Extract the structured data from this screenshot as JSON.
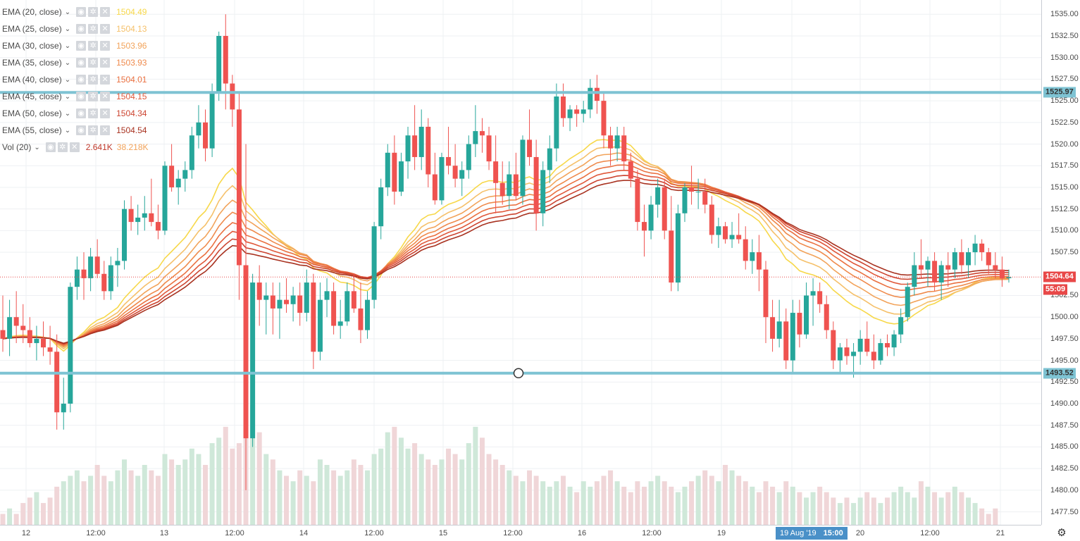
{
  "legend": {
    "indicators": [
      {
        "name": "EMA (20, close)",
        "value": "1504.49",
        "color": "#f7d84a"
      },
      {
        "name": "EMA (25, close)",
        "value": "1504.13",
        "color": "#f5c06a"
      },
      {
        "name": "EMA (30, close)",
        "value": "1503.96",
        "color": "#f2a35a"
      },
      {
        "name": "EMA (35, close)",
        "value": "1503.93",
        "color": "#ef8a4c"
      },
      {
        "name": "EMA (40, close)",
        "value": "1504.01",
        "color": "#ea7040"
      },
      {
        "name": "EMA (45, close)",
        "value": "1504.15",
        "color": "#e0583a"
      },
      {
        "name": "EMA (50, close)",
        "value": "1504.34",
        "color": "#cc4430"
      },
      {
        "name": "EMA (55, close)",
        "value": "1504.54",
        "color": "#a83220"
      }
    ],
    "volume": {
      "name": "Vol (20)",
      "value": "2.641K",
      "value2": "38.218K",
      "color": "#c0392b",
      "color2": "#f2a35a"
    },
    "buttons": {
      "visibility": "◉",
      "settings": "✲",
      "remove": "✕"
    }
  },
  "price_axis": {
    "labels": [
      "1535.00",
      "1532.50",
      "1530.00",
      "1527.50",
      "1525.00",
      "1522.50",
      "1520.00",
      "1517.50",
      "1515.00",
      "1512.50",
      "1510.00",
      "1507.50",
      "1502.50",
      "1500.00",
      "1497.50",
      "1495.00",
      "1492.50",
      "1490.00",
      "1487.50",
      "1485.00",
      "1482.50",
      "1480.00",
      "1477.50"
    ]
  },
  "time_axis": {
    "labels": [
      "12",
      "12:00",
      "13",
      "12:00",
      "14",
      "12:00",
      "15",
      "12:00",
      "16",
      "12:00",
      "19",
      "12:00",
      "20",
      "12:00",
      "21"
    ]
  },
  "price_labels": {
    "upper_line": "1525.97",
    "current": "1504.64",
    "countdown": "55:09",
    "lower_line": "1493.52"
  },
  "crosshair": {
    "date": "19 Aug '19",
    "time": "15:00"
  },
  "settings_icon": "⚙",
  "colors": {
    "up": "#26a69a",
    "down": "#ef5350",
    "hline": "#7ec3d3",
    "current_line": "#e84848",
    "volume_up": "#cfe8d9",
    "volume_down": "#f0d6d8",
    "grid": "#eef0f3"
  },
  "chart_data": {
    "type": "candlestick",
    "title": "",
    "xlabel": "",
    "ylabel": "",
    "ylim": [
      1476.0,
      1536.0
    ],
    "x_start": "12",
    "x_end": "21",
    "candles": [
      [
        1498.5,
        1502.5,
        1496,
        1497.5
      ],
      [
        1497.5,
        1502,
        1495.5,
        1500
      ],
      [
        1500,
        1503,
        1497,
        1499
      ],
      [
        1499,
        1501.5,
        1497,
        1498.5
      ],
      [
        1498.5,
        1500,
        1496.5,
        1497
      ],
      [
        1497,
        1499,
        1495,
        1497.5
      ],
      [
        1497.5,
        1499.5,
        1495.5,
        1496.5
      ],
      [
        1496.5,
        1499,
        1494.5,
        1496
      ],
      [
        1496,
        1498,
        1487,
        1489
      ],
      [
        1489,
        1493,
        1487,
        1490
      ],
      [
        1490,
        1504,
        1489,
        1503.5
      ],
      [
        1503.5,
        1507,
        1502,
        1505.5
      ],
      [
        1505.5,
        1507.5,
        1502,
        1504.5
      ],
      [
        1504.5,
        1508,
        1503,
        1507
      ],
      [
        1507,
        1509,
        1504.5,
        1505
      ],
      [
        1505,
        1506.5,
        1502,
        1503
      ],
      [
        1503,
        1507,
        1502,
        1506
      ],
      [
        1506,
        1508,
        1503.5,
        1506.5
      ],
      [
        1506.5,
        1513.5,
        1505.5,
        1512.5
      ],
      [
        1512.5,
        1514,
        1510,
        1511
      ],
      [
        1511,
        1513,
        1509.5,
        1511.5
      ],
      [
        1511.5,
        1514,
        1510,
        1512
      ],
      [
        1512,
        1516,
        1510.5,
        1511
      ],
      [
        1511,
        1513,
        1509,
        1510
      ],
      [
        1510,
        1518,
        1509.5,
        1517.5
      ],
      [
        1517.5,
        1520,
        1514.5,
        1515
      ],
      [
        1515,
        1517,
        1513,
        1516
      ],
      [
        1516,
        1518,
        1514.5,
        1517
      ],
      [
        1517,
        1522,
        1516,
        1521
      ],
      [
        1521,
        1524.5,
        1519.5,
        1522.5
      ],
      [
        1522.5,
        1524,
        1518,
        1519.5
      ],
      [
        1519.5,
        1527,
        1518.5,
        1526
      ],
      [
        1526,
        1533,
        1525,
        1532.5
      ],
      [
        1532.5,
        1535,
        1524,
        1527
      ],
      [
        1527,
        1528,
        1522,
        1524
      ],
      [
        1524,
        1526,
        1502,
        1506
      ],
      [
        1506,
        1520,
        1480,
        1486
      ],
      [
        1486,
        1505,
        1485,
        1504
      ],
      [
        1504,
        1506,
        1499,
        1502
      ],
      [
        1502,
        1504,
        1498,
        1502.5
      ],
      [
        1502.5,
        1504,
        1498,
        1501
      ],
      [
        1501,
        1504,
        1497.5,
        1502
      ],
      [
        1502,
        1504.5,
        1500.5,
        1501.5
      ],
      [
        1501.5,
        1503.5,
        1499.5,
        1502.5
      ],
      [
        1502.5,
        1504,
        1499,
        1500.5
      ],
      [
        1500.5,
        1505.5,
        1499.5,
        1504
      ],
      [
        1504,
        1505,
        1494,
        1496
      ],
      [
        1496,
        1504,
        1495,
        1502
      ],
      [
        1502,
        1504.5,
        1500,
        1503
      ],
      [
        1503,
        1504,
        1498,
        1499
      ],
      [
        1499,
        1502,
        1497.5,
        1499.5
      ],
      [
        1499.5,
        1504,
        1499,
        1503
      ],
      [
        1503,
        1505,
        1500.5,
        1501
      ],
      [
        1501,
        1504,
        1497,
        1498.5
      ],
      [
        1498.5,
        1503,
        1497.5,
        1502
      ],
      [
        1502,
        1511,
        1501,
        1510.5
      ],
      [
        1510.5,
        1516,
        1509,
        1515
      ],
      [
        1515,
        1520,
        1514,
        1519
      ],
      [
        1519,
        1521,
        1513,
        1514.5
      ],
      [
        1514.5,
        1519,
        1514,
        1518
      ],
      [
        1518,
        1522,
        1516,
        1521
      ],
      [
        1521,
        1524.5,
        1517,
        1518.5
      ],
      [
        1518.5,
        1524,
        1517,
        1522
      ],
      [
        1522,
        1523,
        1515,
        1516.5
      ],
      [
        1516.5,
        1519,
        1513,
        1513.5
      ],
      [
        1513.5,
        1519,
        1513,
        1518.5
      ],
      [
        1518.5,
        1522,
        1516.5,
        1517.5
      ],
      [
        1517.5,
        1520,
        1515,
        1516
      ],
      [
        1516,
        1518,
        1514,
        1517
      ],
      [
        1517,
        1521,
        1516,
        1520
      ],
      [
        1520,
        1524.5,
        1518.5,
        1521.5
      ],
      [
        1521.5,
        1523,
        1519,
        1521
      ],
      [
        1521,
        1522,
        1517,
        1518
      ],
      [
        1518,
        1521,
        1512,
        1515.5
      ],
      [
        1515.5,
        1518,
        1513,
        1514
      ],
      [
        1514,
        1518,
        1512.5,
        1516.5
      ],
      [
        1516.5,
        1519,
        1513.5,
        1514
      ],
      [
        1514,
        1521,
        1513,
        1520.5
      ],
      [
        1520.5,
        1524,
        1517.5,
        1518.5
      ],
      [
        1518.5,
        1520.5,
        1510,
        1512
      ],
      [
        1512,
        1518,
        1510.5,
        1517
      ],
      [
        1517,
        1521,
        1515.5,
        1519.5
      ],
      [
        1519.5,
        1527,
        1518,
        1525.5
      ],
      [
        1525.5,
        1527,
        1522,
        1523
      ],
      [
        1523,
        1524.5,
        1521.5,
        1524
      ],
      [
        1524,
        1524.5,
        1522,
        1523.5
      ],
      [
        1523.5,
        1525,
        1522.5,
        1524
      ],
      [
        1524,
        1527.5,
        1523,
        1526.5
      ],
      [
        1526.5,
        1528,
        1523.5,
        1525
      ],
      [
        1525,
        1526,
        1519.5,
        1521
      ],
      [
        1521,
        1522,
        1517.5,
        1519.5
      ],
      [
        1519.5,
        1522,
        1518,
        1521
      ],
      [
        1521,
        1522,
        1517,
        1518
      ],
      [
        1518,
        1519,
        1515,
        1516
      ],
      [
        1516,
        1517,
        1510,
        1511
      ],
      [
        1511,
        1513,
        1507,
        1510
      ],
      [
        1510,
        1514,
        1509,
        1513
      ],
      [
        1513,
        1516,
        1511.5,
        1515
      ],
      [
        1515,
        1516,
        1509,
        1510
      ],
      [
        1510,
        1514,
        1503,
        1504
      ],
      [
        1504,
        1513,
        1503,
        1512
      ],
      [
        1512,
        1515.5,
        1511,
        1515
      ],
      [
        1515,
        1517.5,
        1513,
        1514.5
      ],
      [
        1514.5,
        1516,
        1512.5,
        1514.5
      ],
      [
        1514.5,
        1516,
        1512,
        1513
      ],
      [
        1513,
        1514,
        1508.5,
        1509.5
      ],
      [
        1509.5,
        1511.5,
        1508,
        1510.5
      ],
      [
        1510.5,
        1511,
        1508.5,
        1509
      ],
      [
        1509,
        1511,
        1508,
        1509.5
      ],
      [
        1509.5,
        1512,
        1508.5,
        1509
      ],
      [
        1509,
        1510.5,
        1505.5,
        1506.5
      ],
      [
        1506.5,
        1509,
        1505,
        1507.5
      ],
      [
        1507.5,
        1509.5,
        1503,
        1505.5
      ],
      [
        1505.5,
        1506.5,
        1497,
        1500
      ],
      [
        1500,
        1502,
        1496,
        1497.5
      ],
      [
        1497.5,
        1502,
        1496.5,
        1499.5
      ],
      [
        1499.5,
        1501,
        1494,
        1495
      ],
      [
        1495,
        1502,
        1493.5,
        1500.5
      ],
      [
        1500.5,
        1502,
        1496.5,
        1498
      ],
      [
        1498,
        1504,
        1497.5,
        1502.5
      ],
      [
        1502.5,
        1504.5,
        1499,
        1503
      ],
      [
        1503,
        1504,
        1500.5,
        1501.5
      ],
      [
        1501.5,
        1502.5,
        1497.5,
        1498.5
      ],
      [
        1498.5,
        1499.5,
        1494,
        1495
      ],
      [
        1495,
        1497,
        1493.5,
        1496.5
      ],
      [
        1496.5,
        1497.5,
        1494.5,
        1495.5
      ],
      [
        1495.5,
        1497,
        1493,
        1496
      ],
      [
        1496,
        1498.5,
        1494.5,
        1497.5
      ],
      [
        1497.5,
        1499.5,
        1495.5,
        1496
      ],
      [
        1496,
        1498,
        1494,
        1495
      ],
      [
        1495,
        1497.5,
        1494.5,
        1497
      ],
      [
        1497,
        1498,
        1495.5,
        1496.5
      ],
      [
        1496.5,
        1498.5,
        1495.5,
        1498
      ],
      [
        1498,
        1501,
        1497,
        1500
      ],
      [
        1500,
        1504,
        1499.5,
        1503.5
      ],
      [
        1503.5,
        1507.5,
        1502.5,
        1506
      ],
      [
        1506,
        1509,
        1504.5,
        1505.5
      ],
      [
        1505.5,
        1507,
        1503.5,
        1506.5
      ],
      [
        1506.5,
        1507.5,
        1503,
        1504
      ],
      [
        1504,
        1506.5,
        1502,
        1506
      ],
      [
        1506,
        1507.5,
        1503.5,
        1505.5
      ],
      [
        1505.5,
        1508,
        1504.5,
        1507.5
      ],
      [
        1507.5,
        1509,
        1505,
        1506
      ],
      [
        1506,
        1508,
        1504.5,
        1507.5
      ],
      [
        1507.5,
        1509.5,
        1506,
        1508.5
      ],
      [
        1508.5,
        1509,
        1506.5,
        1507.5
      ],
      [
        1507.5,
        1508,
        1505,
        1506
      ],
      [
        1506,
        1507.5,
        1504.5,
        1505.5
      ],
      [
        1505.5,
        1507,
        1503.5,
        1504.5
      ],
      [
        1504.5,
        1505.5,
        1504,
        1504.64
      ]
    ],
    "volume": [
      2,
      3,
      2,
      4,
      5,
      6,
      4,
      5,
      7,
      8,
      9,
      10,
      8,
      9,
      11,
      9,
      8,
      10,
      12,
      10,
      9,
      11,
      10,
      9,
      13,
      12,
      11,
      12,
      14,
      13,
      11,
      15,
      16,
      18,
      14,
      15,
      19,
      22,
      17,
      13,
      12,
      10,
      9,
      8,
      10,
      9,
      8,
      12,
      11,
      10,
      9,
      10,
      12,
      11,
      10,
      13,
      14,
      17,
      18,
      16,
      14,
      15,
      13,
      12,
      11,
      12,
      14,
      13,
      12,
      15,
      18,
      16,
      13,
      12,
      11,
      10,
      9,
      8,
      10,
      9,
      8,
      7,
      8,
      9,
      7,
      6,
      8,
      7,
      8,
      9,
      10,
      8,
      7,
      6,
      8,
      7,
      8,
      9,
      8,
      7,
      6,
      7,
      8,
      9,
      10,
      9,
      8,
      11,
      10,
      9,
      8,
      7,
      6,
      8,
      7,
      6,
      8,
      7,
      6,
      5,
      6,
      7,
      6,
      5,
      4,
      5,
      4,
      5,
      6,
      5,
      4,
      5,
      6,
      7,
      6,
      5,
      8,
      7,
      6,
      5,
      6,
      7,
      6,
      5,
      4,
      3,
      2,
      3
    ],
    "ema_periods": [
      20,
      25,
      30,
      35,
      40,
      45,
      50,
      55
    ]
  }
}
